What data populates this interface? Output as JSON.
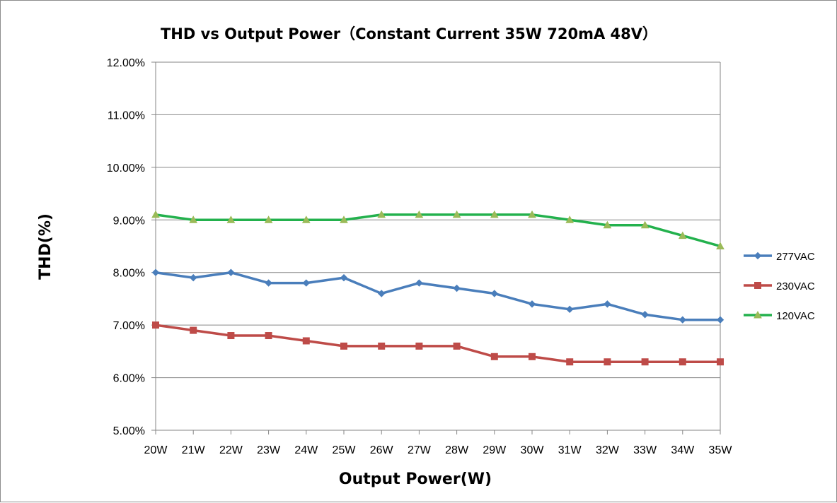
{
  "chart_data": {
    "type": "line",
    "title": "THD vs Output Power（Constant Current 35W   720mA 48V）",
    "xlabel": "Output Power(W)",
    "ylabel": "THD(%)",
    "categories": [
      "20W",
      "21W",
      "22W",
      "23W",
      "24W",
      "25W",
      "26W",
      "27W",
      "28W",
      "29W",
      "30W",
      "31W",
      "32W",
      "33W",
      "34W",
      "35W"
    ],
    "y_ticks": [
      "5.00%",
      "6.00%",
      "7.00%",
      "8.00%",
      "9.00%",
      "10.00%",
      "11.00%",
      "12.00%"
    ],
    "ylim": [
      5.0,
      12.0
    ],
    "grid": "horizontal",
    "legend_position": "right",
    "series": [
      {
        "name": "277VAC",
        "color": "#4a7ebb",
        "marker": "diamond",
        "values": [
          8.0,
          7.9,
          8.0,
          7.8,
          7.8,
          7.9,
          7.6,
          7.8,
          7.7,
          7.6,
          7.4,
          7.3,
          7.4,
          7.2,
          7.1,
          7.1
        ]
      },
      {
        "name": "230VAC",
        "color": "#be4b48",
        "marker": "square",
        "values": [
          7.0,
          6.9,
          6.8,
          6.8,
          6.7,
          6.6,
          6.6,
          6.6,
          6.6,
          6.4,
          6.4,
          6.3,
          6.3,
          6.3,
          6.3,
          6.3
        ]
      },
      {
        "name": "120VAC",
        "color": "#23b14d",
        "marker": "triangle",
        "marker_color": "#9bbb59",
        "values": [
          9.1,
          9.0,
          9.0,
          9.0,
          9.0,
          9.0,
          9.1,
          9.1,
          9.1,
          9.1,
          9.1,
          9.0,
          8.9,
          8.9,
          8.7,
          8.5
        ]
      }
    ]
  }
}
